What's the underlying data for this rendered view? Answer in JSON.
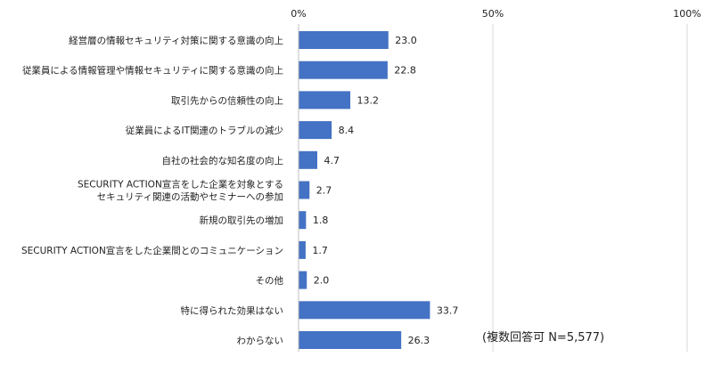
{
  "chart_data": {
    "type": "bar",
    "orientation": "horizontal",
    "categories": [
      [
        "経営層の情報セキュリティ対策に関する意識の向上"
      ],
      [
        "従業員による情報管理や情報セキュリティに関する意識の向上"
      ],
      [
        "取引先からの信頼性の向上"
      ],
      [
        "従業員によるIT関連のトラブルの減少"
      ],
      [
        "自社の社会的な知名度の向上"
      ],
      [
        "SECURITY ACTION宣言をした企業を対象とする",
        "セキュリティ関連の活動やセミナーへの参加"
      ],
      [
        "新規の取引先の増加"
      ],
      [
        "SECURITY ACTION宣言をした企業間とのコミュニケーション"
      ],
      [
        "その他"
      ],
      [
        "特に得られた効果はない"
      ],
      [
        "わからない"
      ]
    ],
    "values": [
      23.0,
      22.8,
      13.2,
      8.4,
      4.7,
      2.7,
      1.8,
      1.7,
      2.0,
      33.7,
      26.3
    ],
    "value_labels": [
      "23.0",
      "22.8",
      "13.2",
      "8.4",
      "4.7",
      "2.7",
      "1.8",
      "1.7",
      "2.0",
      "33.7",
      "26.3"
    ],
    "xlim": [
      0,
      100
    ],
    "x_ticks": [
      0,
      50,
      100
    ],
    "x_tick_labels": [
      "0%",
      "50%",
      "100%"
    ],
    "axis_position": "top",
    "grid": true,
    "bar_color": "#4472c4",
    "grid_color": "#d9d9d9",
    "annotation": "(複数回答可 N=5,577)"
  }
}
